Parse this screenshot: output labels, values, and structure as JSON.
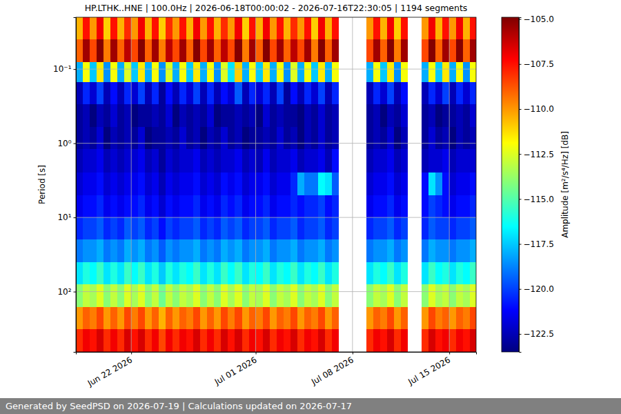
{
  "chart_data": {
    "type": "heatmap",
    "title": "HP.LTHK..HNE | 100.0Hz | 2026-06-18T00:00:02 - 2026-07-16T22:30:05 | 1194 segments",
    "ylabel": "Period [s]",
    "footer": "Generated by SeedPSD on 2026-07-19 | Calculations updated on 2026-07-17",
    "log": "y",
    "grid": true,
    "xlim": [
      "2026-06-18T00:00:02",
      "2026-07-16T22:30:05"
    ],
    "xticks": [
      {
        "value": "2026-06-22",
        "label": "Jun 22 2026"
      },
      {
        "value": "2026-07-01",
        "label": "Jul 01 2026"
      },
      {
        "value": "2026-07-08",
        "label": "Jul 08 2026"
      },
      {
        "value": "2026-07-15",
        "label": "Jul 15 2026"
      }
    ],
    "ylim": [
      0.02,
      650
    ],
    "yticks": [
      {
        "value": 0.1,
        "label": "10⁻¹"
      },
      {
        "value": 1,
        "label": "10⁰"
      },
      {
        "value": 10,
        "label": "10¹"
      },
      {
        "value": 100,
        "label": "10²"
      }
    ],
    "x": [
      "2026-06-18T00:00",
      "2026-06-18T12:00",
      "2026-06-19T00:00",
      "2026-06-19T12:00",
      "2026-06-20T00:00",
      "2026-06-20T12:00",
      "2026-06-21T00:00",
      "2026-06-21T12:00",
      "2026-06-22T00:00",
      "2026-06-22T12:00",
      "2026-06-23T00:00",
      "2026-06-23T12:00",
      "2026-06-24T00:00",
      "2026-06-24T12:00",
      "2026-06-25T00:00",
      "2026-06-25T12:00",
      "2026-06-26T00:00",
      "2026-06-26T12:00",
      "2026-06-27T00:00",
      "2026-06-27T12:00",
      "2026-06-28T00:00",
      "2026-06-28T12:00",
      "2026-06-29T00:00",
      "2026-06-29T12:00",
      "2026-06-30T00:00",
      "2026-06-30T12:00",
      "2026-07-01T00:00",
      "2026-07-01T12:00",
      "2026-07-02T00:00",
      "2026-07-02T12:00",
      "2026-07-03T00:00",
      "2026-07-03T12:00",
      "2026-07-04T00:00",
      "2026-07-04T12:00",
      "2026-07-05T00:00",
      "2026-07-05T12:00",
      "2026-07-06T00:00",
      "2026-07-06T12:00",
      "2026-07-07T00:00",
      "2026-07-07T12:00",
      "2026-07-08T00:00",
      "2026-07-08T12:00",
      "2026-07-09T00:00",
      "2026-07-09T12:00",
      "2026-07-10T00:00",
      "2026-07-10T12:00",
      "2026-07-11T00:00",
      "2026-07-11T12:00",
      "2026-07-12T00:00",
      "2026-07-12T12:00",
      "2026-07-13T00:00",
      "2026-07-13T12:00",
      "2026-07-14T00:00",
      "2026-07-14T12:00",
      "2026-07-15T00:00",
      "2026-07-15T12:00",
      "2026-07-16T00:00",
      "2026-07-16T12:00"
    ],
    "y": [
      0.02,
      0.04,
      0.08,
      0.15,
      0.3,
      0.6,
      1.2,
      2.5,
      5,
      10,
      20,
      40,
      80,
      160,
      320
    ],
    "cells": [
      [
        -110.5,
        -107.5,
        -110,
        -107,
        -111,
        -107.5,
        -110.5,
        -108,
        -110,
        -107,
        -110.5,
        -107.5,
        -111,
        -108,
        -110,
        -107.5,
        -110.5,
        -107,
        -110,
        -107.5,
        -110.5,
        -108,
        -110,
        -107,
        -111,
        -107.5,
        -110.5,
        -107,
        -110,
        -107.5,
        -110.5,
        -108,
        -110,
        -107.5,
        -111,
        -107,
        -110.5,
        -107.5,
        null,
        null,
        null,
        null,
        -110,
        -107.5,
        -110.5,
        -107,
        -111,
        -107.5,
        null,
        null,
        -110,
        -107,
        -110.5,
        -107.5,
        -110,
        -107,
        -110.5,
        -107.5
      ],
      [
        -109,
        -105.5,
        -108.5,
        -105,
        -109.5,
        -105.5,
        -109,
        -106,
        -108.5,
        -105,
        -109,
        -105.5,
        -109.5,
        -106,
        -108.5,
        -105.5,
        -109,
        -105,
        -108.5,
        -105.5,
        -109,
        -106,
        -108.5,
        -105,
        -109.5,
        -105.5,
        -109,
        -105,
        -108.5,
        -105.5,
        -109,
        -106,
        -108.5,
        -105.5,
        -109.5,
        -105,
        -109,
        -105.5,
        null,
        null,
        null,
        null,
        -108.5,
        -105.5,
        -109,
        -105,
        -109.5,
        -105.5,
        null,
        null,
        -108.5,
        -105,
        -109,
        -105.5,
        -108.5,
        -105,
        -109,
        -105.5
      ],
      [
        -118,
        -112,
        -117.5,
        -111.5,
        -118.5,
        -112,
        -118,
        -112.5,
        -117.5,
        -111.5,
        -118,
        -112,
        -118.5,
        -112.5,
        -118,
        -112,
        -117.5,
        -111.5,
        -118,
        -112,
        -118.5,
        -112.5,
        -117,
        -111,
        -118,
        -112,
        -117.5,
        -111.5,
        -118,
        -112,
        -118.5,
        -112.5,
        -118,
        -112,
        -117.5,
        -111.5,
        -118,
        -112,
        null,
        null,
        null,
        null,
        -118,
        -112,
        -117.5,
        -111.5,
        -118.5,
        -112,
        null,
        null,
        -118,
        -112,
        -117.5,
        -111.5,
        -118,
        -112,
        -118.5,
        -112
      ],
      [
        -122.5,
        -120.5,
        -122,
        -120,
        -122.5,
        -121,
        -122.5,
        -120.5,
        -122,
        -120,
        -122.5,
        -120.5,
        -123,
        -121,
        -122.5,
        -120.5,
        -122,
        -120,
        -122.5,
        -120.5,
        -122.5,
        -121,
        -122,
        -119.5,
        -122.5,
        -120.5,
        -122,
        -120.5,
        -122.5,
        -120,
        -123,
        -121,
        -122.5,
        -120.5,
        -122,
        -120,
        -122.5,
        -120.5,
        null,
        null,
        null,
        null,
        -122.5,
        -120.5,
        -122,
        -120,
        -122.5,
        -121,
        null,
        null,
        -122.5,
        -120.5,
        -122,
        -120,
        -122.5,
        -120.5,
        -122,
        -120.5
      ],
      [
        -123,
        -122.5,
        -123.5,
        -122.5,
        -123,
        -122,
        -123,
        -122.5,
        -123.5,
        -123,
        -123,
        -122.5,
        -123,
        -122,
        -123.5,
        -122.5,
        -123,
        -122.5,
        -123,
        -122,
        -123.5,
        -123,
        -123,
        -122.5,
        -123,
        -122.5,
        -123.5,
        -122,
        -123,
        -122.5,
        -123,
        -123,
        -123.5,
        -122.5,
        -123,
        -122,
        -123,
        -122.5,
        null,
        null,
        null,
        null,
        -123,
        -122.5,
        -123.5,
        -122.5,
        -123,
        -122,
        null,
        null,
        -123,
        -122.5,
        -123.5,
        -123,
        -123,
        -122.5,
        -123,
        -122
      ],
      [
        -123,
        -122.5,
        -123,
        -122,
        -123.5,
        -122.5,
        -123,
        -122.5,
        -123,
        -122,
        -123.5,
        -123,
        -123,
        -122.5,
        -123,
        -122,
        -123,
        -122.5,
        -123.5,
        -122.5,
        -123,
        -122,
        -123,
        -122.5,
        -123.5,
        -123,
        -123,
        -122.5,
        -123,
        -122,
        -123,
        -122.5,
        -123.5,
        -122.5,
        -123,
        -122,
        -123,
        -122.5,
        null,
        null,
        null,
        null,
        -123,
        -122.5,
        -123,
        -122,
        -123.5,
        -122.5,
        null,
        null,
        -123,
        -122,
        -123,
        -122.5,
        -123.5,
        -122.5,
        -123,
        -122.5
      ],
      [
        -122.5,
        -122,
        -122,
        -121.5,
        -122.5,
        -122,
        -122.5,
        -122,
        -122,
        -121.5,
        -122.5,
        -122,
        -123,
        -122,
        -122.5,
        -122,
        -122,
        -121.5,
        -122.5,
        -122,
        -122.5,
        -122,
        -122,
        -121.5,
        -122.5,
        -122,
        -122.5,
        -121.5,
        -122.5,
        -122,
        -122,
        -121.5,
        -122.5,
        -122,
        -122,
        -121.5,
        -122.5,
        -121,
        null,
        null,
        null,
        null,
        -122.5,
        -122,
        -122,
        -121.5,
        -122.5,
        -122,
        null,
        null,
        -122.5,
        -122,
        -122,
        -121.5,
        -122.5,
        -122,
        -122,
        -122
      ],
      [
        -122,
        -121.5,
        -121.5,
        -121,
        -122,
        -121.5,
        -122,
        -121.5,
        -121.5,
        -121,
        -122,
        -121.5,
        -122.5,
        -121.5,
        -122,
        -121.5,
        -121.5,
        -121,
        -122,
        -121.5,
        -122,
        -121,
        -121.5,
        -121,
        -122,
        -121.5,
        -121.5,
        -121,
        -122,
        -121.5,
        -121.5,
        -120.5,
        -118,
        -119,
        -119,
        -116.5,
        -117,
        -119.5,
        null,
        null,
        null,
        null,
        -122,
        -121.5,
        -121.5,
        -121,
        -122,
        -121.5,
        null,
        null,
        -121,
        -117,
        -118.5,
        -121,
        -122,
        -121.5,
        -121.5,
        -121
      ],
      [
        -121.5,
        -121,
        -121,
        -120.5,
        -121.5,
        -121,
        -121.5,
        -121,
        -121,
        -120.5,
        -121.5,
        -121,
        -122,
        -121,
        -121.5,
        -121,
        -121,
        -120.5,
        -121.5,
        -121,
        -121.5,
        -120.5,
        -121,
        -120.5,
        -121.5,
        -121,
        -121,
        -120.5,
        -121.5,
        -121,
        -121,
        -120.5,
        -121,
        -120.5,
        -120.5,
        -120,
        -121,
        -120.5,
        null,
        null,
        null,
        null,
        -121.5,
        -121,
        -121,
        -120.5,
        -121.5,
        -121,
        null,
        null,
        -121,
        -120,
        -120.5,
        -121,
        -121.5,
        -121,
        -121,
        -120.5
      ],
      [
        -120.5,
        -120,
        -120,
        -119.5,
        -120.5,
        -120,
        -120.5,
        -119.5,
        -120,
        -119.5,
        -120.5,
        -120,
        -121,
        -120,
        -120.5,
        -120,
        -120,
        -119.5,
        -120.5,
        -120,
        -120.5,
        -119.5,
        -120,
        -119.5,
        -120.5,
        -120,
        -120,
        -119.5,
        -120.5,
        -120,
        -120,
        -119.5,
        -120.5,
        -120,
        -120,
        -119.5,
        -120.5,
        -120,
        null,
        null,
        null,
        null,
        -120.5,
        -120,
        -120,
        -119.5,
        -120.5,
        -120,
        null,
        null,
        -120.5,
        -119.5,
        -120,
        -120,
        -120.5,
        -120,
        -120,
        -119.5
      ],
      [
        -119,
        -118.5,
        -118.5,
        -118,
        -119,
        -118.5,
        -119,
        -118,
        -118.5,
        -118,
        -119,
        -118.5,
        -119.5,
        -118.5,
        -119,
        -118.5,
        -118.5,
        -118,
        -119,
        -118.5,
        -119,
        -118,
        -118.5,
        -118,
        -119,
        -118.5,
        -118.5,
        -118,
        -119,
        -118.5,
        -118.5,
        -118,
        -119,
        -118.5,
        -118.5,
        -118,
        -119,
        -118.5,
        null,
        null,
        null,
        null,
        -119,
        -118.5,
        -118.5,
        -118,
        -119,
        -118.5,
        null,
        null,
        -119,
        -118,
        -118.5,
        -118.5,
        -119,
        -118.5,
        -118.5,
        -118
      ],
      [
        -117,
        -116,
        -116.5,
        -115.5,
        -117,
        -116,
        -117,
        -115.5,
        -116.5,
        -115.5,
        -117,
        -116,
        -117.5,
        -116,
        -117,
        -116,
        -116.5,
        -115.5,
        -117,
        -116,
        -117,
        -115.5,
        -116.5,
        -115.5,
        -117,
        -116,
        -116.5,
        -115.5,
        -117,
        -116,
        -116.5,
        -115.5,
        -117,
        -116,
        -116.5,
        -115.5,
        -117,
        -116,
        null,
        null,
        null,
        null,
        -117,
        -116,
        -116.5,
        -115.5,
        -117,
        -116,
        null,
        null,
        -117,
        -115.5,
        -116.5,
        -116,
        -117,
        -116,
        -116.5,
        -115.5
      ],
      [
        -114,
        -113,
        -113.5,
        -112.5,
        -114,
        -113,
        -114,
        -112.5,
        -113.5,
        -112.5,
        -114,
        -113,
        -114.5,
        -113,
        -114,
        -113,
        -113.5,
        -112.5,
        -114,
        -113,
        -114,
        -112.5,
        -113.5,
        -112.5,
        -114,
        -113,
        -113.5,
        -112.5,
        -114,
        -113,
        -113.5,
        -112.5,
        -114,
        -113,
        -113.5,
        -112.5,
        -114,
        -113,
        null,
        null,
        null,
        null,
        -114,
        -113,
        -113.5,
        -112.5,
        -114,
        -113,
        null,
        null,
        -114,
        -112.5,
        -113.5,
        -113,
        -114,
        -113,
        -113.5,
        -112.5
      ],
      [
        -110,
        -109,
        -109.5,
        -108.5,
        -110,
        -109,
        -110,
        -108.5,
        -109.5,
        -108.5,
        -110,
        -109,
        -110.5,
        -109,
        -110,
        -109,
        -109.5,
        -108.5,
        -110,
        -109,
        -110,
        -108.5,
        -109.5,
        -108.5,
        -110,
        -109,
        -109.5,
        -108.5,
        -110,
        -109,
        -109.5,
        -108.5,
        -110,
        -109,
        -109.5,
        -108.5,
        -110,
        -109,
        null,
        null,
        null,
        null,
        -110,
        -109,
        -109.5,
        -108.5,
        -110,
        -109,
        null,
        null,
        -110,
        -108.5,
        -109.5,
        -109,
        -110,
        -109,
        -109.5,
        -108.5
      ],
      [
        -108,
        -107,
        -107.5,
        -106.5,
        -108,
        -107,
        -108,
        -106.5,
        -107.5,
        -106.5,
        -108,
        -107,
        -108.5,
        -107,
        -108,
        -107,
        -107.5,
        -106.5,
        -108,
        -107,
        -108,
        -106.5,
        -107.5,
        -106.5,
        -108,
        -107,
        -107.5,
        -106.5,
        -108,
        -107,
        -107.5,
        -106.5,
        -108,
        -107,
        -107.5,
        -106.5,
        -108,
        -107,
        null,
        null,
        null,
        null,
        -108,
        -107,
        -107.5,
        -106.5,
        -108,
        -107,
        null,
        null,
        -108,
        -106.5,
        -107.5,
        -107,
        -108,
        -107,
        -107.5,
        -106.5
      ]
    ],
    "colorbar": {
      "label": "Amplitude [m²/s⁴/Hz] [dB]",
      "range": [
        -123.5,
        -104.9
      ],
      "ticks": [
        {
          "value": -105,
          "label": "−105.0"
        },
        {
          "value": -107.5,
          "label": "−107.5"
        },
        {
          "value": -110,
          "label": "−110.0"
        },
        {
          "value": -112.5,
          "label": "−112.5"
        },
        {
          "value": -115,
          "label": "−115.0"
        },
        {
          "value": -117.5,
          "label": "−117.5"
        },
        {
          "value": -120,
          "label": "−120.0"
        },
        {
          "value": -122.5,
          "label": "−122.5"
        }
      ]
    }
  }
}
